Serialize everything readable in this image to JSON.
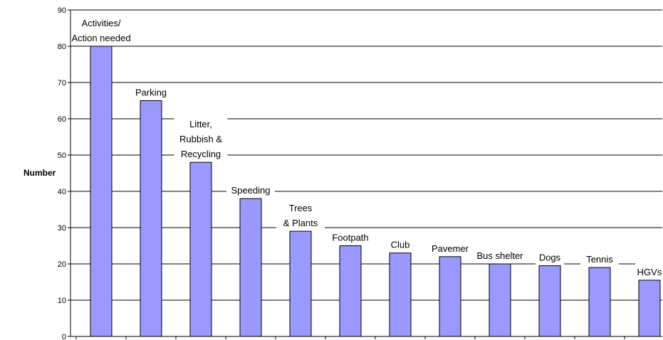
{
  "chart_data": {
    "type": "bar",
    "title": "",
    "xlabel": "",
    "ylabel": "Number",
    "ylim": [
      0,
      90
    ],
    "yticks": [
      0,
      10,
      20,
      30,
      40,
      50,
      60,
      70,
      80,
      90
    ],
    "grid": true,
    "legend": "none",
    "bar_color": "#9999ff",
    "categories": [
      [
        "Activities/",
        "Action needed"
      ],
      [
        "Parking"
      ],
      [
        "Litter,",
        "Rubbish &",
        "Recycling"
      ],
      [
        "Speeding"
      ],
      [
        "Trees",
        "& Plants"
      ],
      [
        "Footpath"
      ],
      [
        "Club"
      ],
      [
        "Pavemer"
      ],
      [
        "Bus shelter"
      ],
      [
        "Dogs"
      ],
      [
        "Tennis"
      ],
      [
        "HGVs"
      ]
    ],
    "values": [
      80,
      65,
      48,
      38,
      29,
      25,
      23,
      22,
      20,
      19.5,
      19,
      15.5
    ]
  }
}
